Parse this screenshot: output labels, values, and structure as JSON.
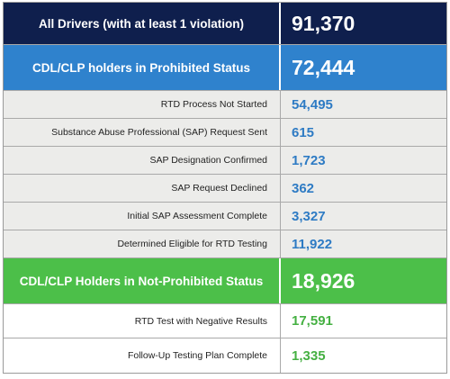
{
  "all_drivers": {
    "label": "All Drivers (with at least 1 violation)",
    "value": "91,370"
  },
  "prohibited": {
    "label": "CDL/CLP holders in Prohibited Status",
    "value": "72,444",
    "items": [
      {
        "label": "RTD Process Not Started",
        "value": "54,495"
      },
      {
        "label": "Substance Abuse Professional (SAP) Request Sent",
        "value": "615"
      },
      {
        "label": "SAP Designation Confirmed",
        "value": "1,723"
      },
      {
        "label": "SAP Request Declined",
        "value": "362"
      },
      {
        "label": "Initial SAP Assessment Complete",
        "value": "3,327"
      },
      {
        "label": "Determined Eligible for RTD Testing",
        "value": "11,922"
      }
    ]
  },
  "not_prohibited": {
    "label": "CDL/CLP Holders in Not-Prohibited Status",
    "value": "18,926",
    "items": [
      {
        "label": "RTD Test with Negative Results",
        "value": "17,591"
      },
      {
        "label": "Follow-Up Testing Plan Complete",
        "value": "1,335"
      }
    ]
  },
  "colors": {
    "navy": "#0f1f4d",
    "blue": "#2f82cd",
    "green": "#4cbf49",
    "gray_row": "#ececea",
    "blue_text": "#2e7bc4",
    "green_text": "#45b042"
  }
}
